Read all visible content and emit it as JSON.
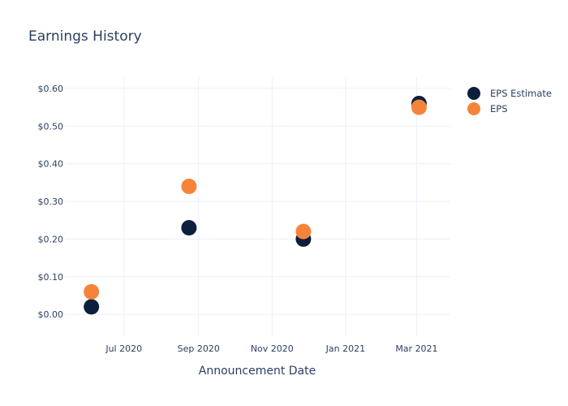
{
  "chart_data": {
    "type": "scatter",
    "title": "Earnings History",
    "xlabel": "Announcement Date",
    "ylabel": "",
    "x_ticks": [
      {
        "date": "2020-07-01",
        "label": "Jul 2020"
      },
      {
        "date": "2020-09-01",
        "label": "Sep 2020"
      },
      {
        "date": "2020-11-01",
        "label": "Nov 2020"
      },
      {
        "date": "2021-01-01",
        "label": "Jan 2021"
      },
      {
        "date": "2021-03-01",
        "label": "Mar 2021"
      }
    ],
    "y_ticks": [
      {
        "value": 0.0,
        "label": "$0.00"
      },
      {
        "value": 0.1,
        "label": "$0.10"
      },
      {
        "value": 0.2,
        "label": "$0.20"
      },
      {
        "value": 0.3,
        "label": "$0.30"
      },
      {
        "value": 0.4,
        "label": "$0.40"
      },
      {
        "value": 0.5,
        "label": "$0.50"
      },
      {
        "value": 0.6,
        "label": "$0.60"
      }
    ],
    "xlim": [
      "2020-05-13",
      "2021-03-29"
    ],
    "ylim": [
      -0.06,
      0.63
    ],
    "grid": true,
    "legend_position": "top-right",
    "series": [
      {
        "name": "EPS Estimate",
        "color": "#0d1f3c",
        "points": [
          {
            "x": "2020-06-04",
            "y": 0.02
          },
          {
            "x": "2020-08-24",
            "y": 0.23
          },
          {
            "x": "2020-11-27",
            "y": 0.2
          },
          {
            "x": "2021-03-03",
            "y": 0.56
          }
        ]
      },
      {
        "name": "EPS",
        "color": "#f5843a",
        "points": [
          {
            "x": "2020-06-04",
            "y": 0.06
          },
          {
            "x": "2020-08-24",
            "y": 0.34
          },
          {
            "x": "2020-11-27",
            "y": 0.22
          },
          {
            "x": "2021-03-03",
            "y": 0.55
          }
        ]
      }
    ]
  }
}
